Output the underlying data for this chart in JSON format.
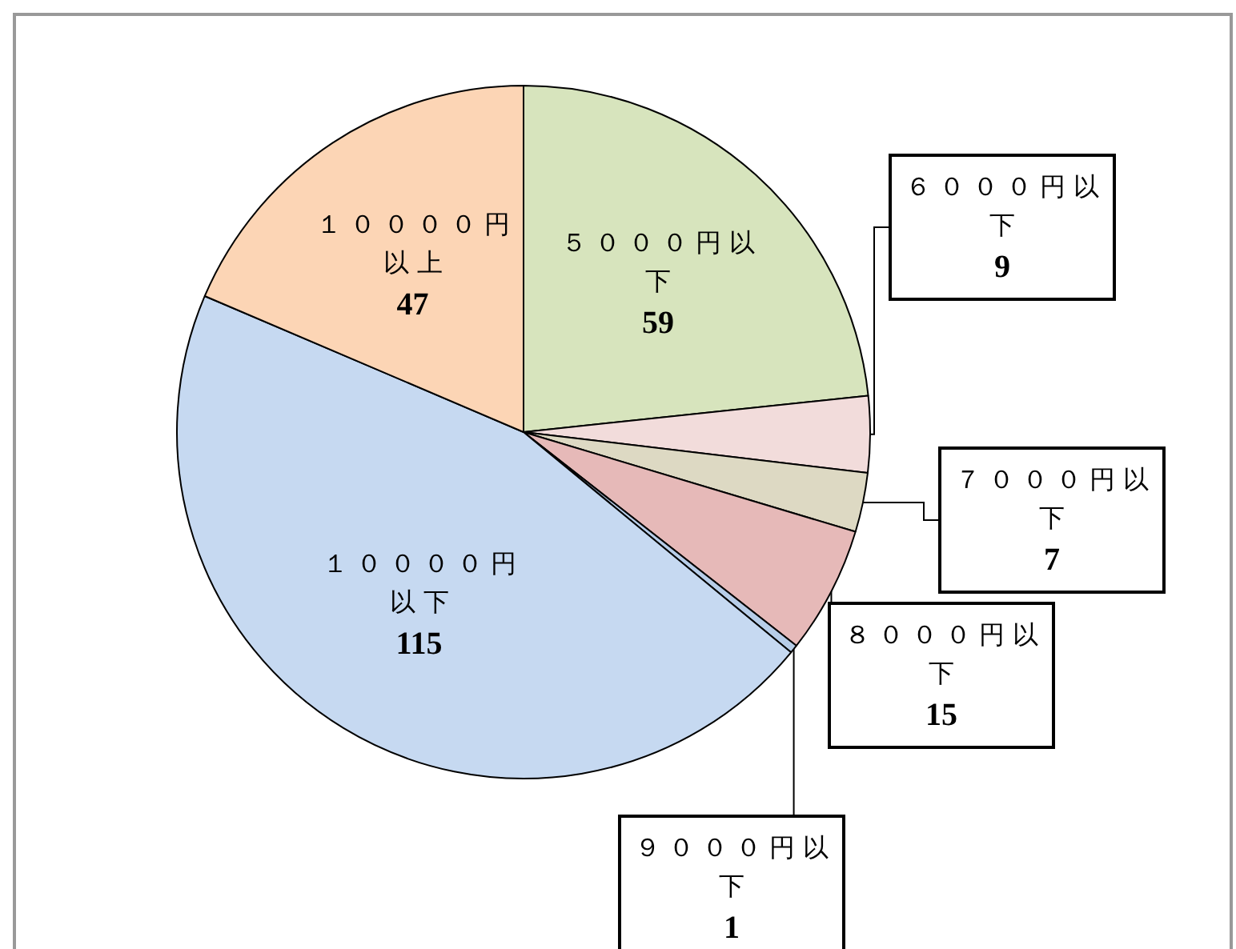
{
  "chart_data": {
    "type": "pie",
    "categories": [
      "５０００円以下",
      "６０００円以下",
      "７０００円以下",
      "８０００円以下",
      "９０００円以下",
      "１００００円以下",
      "１００００円以上"
    ],
    "values": [
      59,
      9,
      7,
      15,
      1,
      115,
      47
    ],
    "colors": [
      "#d7e4bd",
      "#f2dcdb",
      "#ddd9c3",
      "#e6b9b8",
      "#b7cde8",
      "#c6d9f1",
      "#fcd5b5"
    ],
    "data_labels": true,
    "legend": false
  }
}
